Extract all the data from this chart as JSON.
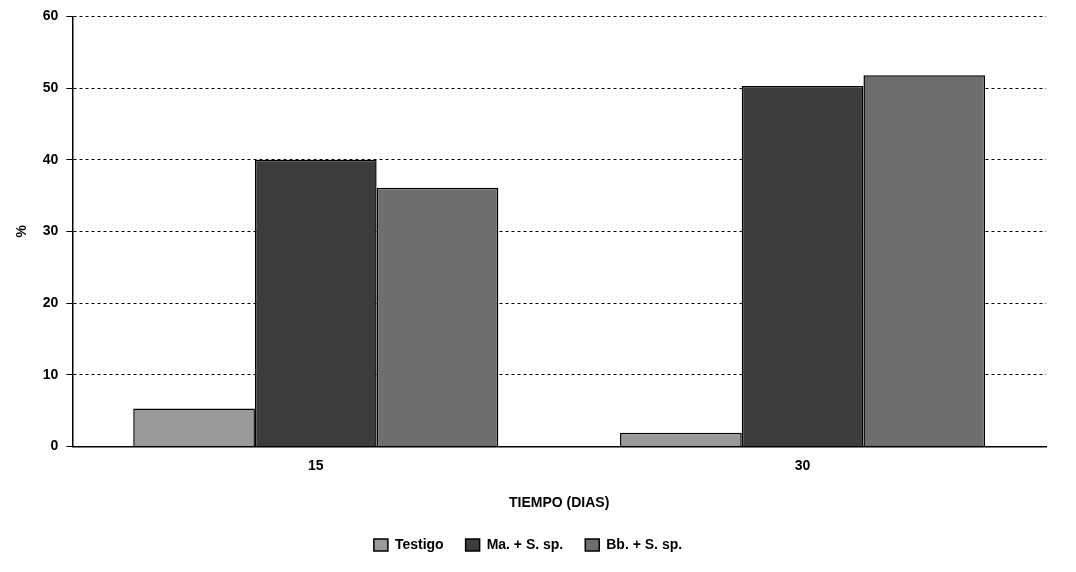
{
  "chart_data": {
    "type": "bar",
    "xlabel": "TIEMPO (DIAS)",
    "ylabel": "%",
    "categories": [
      "15",
      "30"
    ],
    "series": [
      {
        "name": "Testigo",
        "color": "#9a9a9a",
        "values": [
          5.3,
          1.9
        ]
      },
      {
        "name": "Ma. + S. sp.",
        "color": "#3c3c3c",
        "values": [
          40,
          50.3
        ]
      },
      {
        "name": "Bb. + S. sp.",
        "color": "#6e6e6e",
        "values": [
          36.1,
          51.8
        ]
      }
    ],
    "ylim": [
      0,
      60
    ],
    "yticks": [
      0,
      10,
      20,
      30,
      40,
      50,
      60
    ],
    "grid": "y",
    "legend": "bottom"
  }
}
